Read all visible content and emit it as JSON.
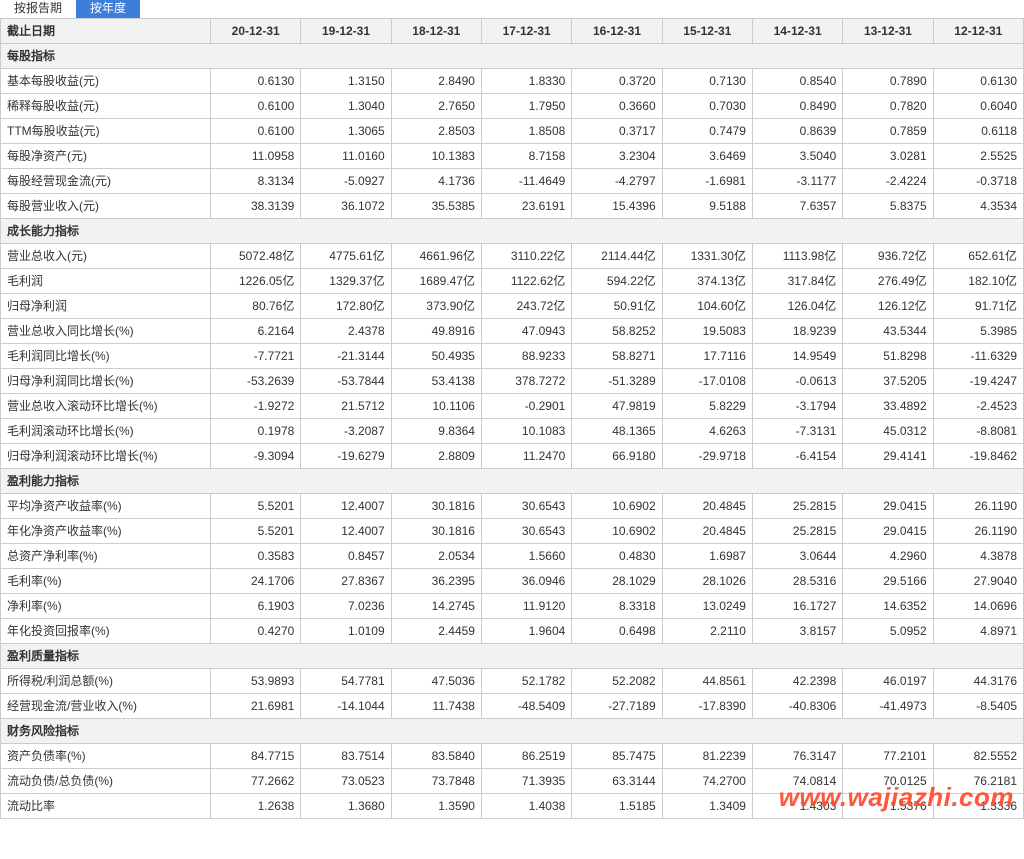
{
  "tabs": {
    "left": "按报告期",
    "active": "按年度"
  },
  "header_label": "截止日期",
  "dates": [
    "20-12-31",
    "19-12-31",
    "18-12-31",
    "17-12-31",
    "16-12-31",
    "15-12-31",
    "14-12-31",
    "13-12-31",
    "12-12-31"
  ],
  "sections": [
    {
      "title": "每股指标",
      "rows": [
        {
          "label": "基本每股收益(元)",
          "vals": [
            "0.6130",
            "1.3150",
            "2.8490",
            "1.8330",
            "0.3720",
            "0.7130",
            "0.8540",
            "0.7890",
            "0.6130"
          ]
        },
        {
          "label": "稀释每股收益(元)",
          "vals": [
            "0.6100",
            "1.3040",
            "2.7650",
            "1.7950",
            "0.3660",
            "0.7030",
            "0.8490",
            "0.7820",
            "0.6040"
          ]
        },
        {
          "label": "TTM每股收益(元)",
          "vals": [
            "0.6100",
            "1.3065",
            "2.8503",
            "1.8508",
            "0.3717",
            "0.7479",
            "0.8639",
            "0.7859",
            "0.6118"
          ]
        },
        {
          "label": "每股净资产(元)",
          "vals": [
            "11.0958",
            "11.0160",
            "10.1383",
            "8.7158",
            "3.2304",
            "3.6469",
            "3.5040",
            "3.0281",
            "2.5525"
          ]
        },
        {
          "label": "每股经营现金流(元)",
          "vals": [
            "8.3134",
            "-5.0927",
            "4.1736",
            "-11.4649",
            "-4.2797",
            "-1.6981",
            "-3.1177",
            "-2.4224",
            "-0.3718"
          ]
        },
        {
          "label": "每股营业收入(元)",
          "vals": [
            "38.3139",
            "36.1072",
            "35.5385",
            "23.6191",
            "15.4396",
            "9.5188",
            "7.6357",
            "5.8375",
            "4.3534"
          ]
        }
      ]
    },
    {
      "title": "成长能力指标",
      "rows": [
        {
          "label": "营业总收入(元)",
          "vals": [
            "5072.48亿",
            "4775.61亿",
            "4661.96亿",
            "3110.22亿",
            "2114.44亿",
            "1331.30亿",
            "1113.98亿",
            "936.72亿",
            "652.61亿"
          ]
        },
        {
          "label": "毛利润",
          "vals": [
            "1226.05亿",
            "1329.37亿",
            "1689.47亿",
            "1122.62亿",
            "594.22亿",
            "374.13亿",
            "317.84亿",
            "276.49亿",
            "182.10亿"
          ]
        },
        {
          "label": "归母净利润",
          "vals": [
            "80.76亿",
            "172.80亿",
            "373.90亿",
            "243.72亿",
            "50.91亿",
            "104.60亿",
            "126.04亿",
            "126.12亿",
            "91.71亿"
          ]
        },
        {
          "label": "营业总收入同比增长(%)",
          "vals": [
            "6.2164",
            "2.4378",
            "49.8916",
            "47.0943",
            "58.8252",
            "19.5083",
            "18.9239",
            "43.5344",
            "5.3985"
          ]
        },
        {
          "label": "毛利润同比增长(%)",
          "vals": [
            "-7.7721",
            "-21.3144",
            "50.4935",
            "88.9233",
            "58.8271",
            "17.7116",
            "14.9549",
            "51.8298",
            "-11.6329"
          ]
        },
        {
          "label": "归母净利润同比增长(%)",
          "vals": [
            "-53.2639",
            "-53.7844",
            "53.4138",
            "378.7272",
            "-51.3289",
            "-17.0108",
            "-0.0613",
            "37.5205",
            "-19.4247"
          ]
        },
        {
          "label": "营业总收入滚动环比增长(%)",
          "vals": [
            "-1.9272",
            "21.5712",
            "10.1106",
            "-0.2901",
            "47.9819",
            "5.8229",
            "-3.1794",
            "33.4892",
            "-2.4523"
          ]
        },
        {
          "label": "毛利润滚动环比增长(%)",
          "vals": [
            "0.1978",
            "-3.2087",
            "9.8364",
            "10.1083",
            "48.1365",
            "4.6263",
            "-7.3131",
            "45.0312",
            "-8.8081"
          ]
        },
        {
          "label": "归母净利润滚动环比增长(%)",
          "vals": [
            "-9.3094",
            "-19.6279",
            "2.8809",
            "11.2470",
            "66.9180",
            "-29.9718",
            "-6.4154",
            "29.4141",
            "-19.8462"
          ]
        }
      ]
    },
    {
      "title": "盈利能力指标",
      "rows": [
        {
          "label": "平均净资产收益率(%)",
          "vals": [
            "5.5201",
            "12.4007",
            "30.1816",
            "30.6543",
            "10.6902",
            "20.4845",
            "25.2815",
            "29.0415",
            "26.1190"
          ]
        },
        {
          "label": "年化净资产收益率(%)",
          "vals": [
            "5.5201",
            "12.4007",
            "30.1816",
            "30.6543",
            "10.6902",
            "20.4845",
            "25.2815",
            "29.0415",
            "26.1190"
          ]
        },
        {
          "label": "总资产净利率(%)",
          "vals": [
            "0.3583",
            "0.8457",
            "2.0534",
            "1.5660",
            "0.4830",
            "1.6987",
            "3.0644",
            "4.2960",
            "4.3878"
          ]
        },
        {
          "label": "毛利率(%)",
          "vals": [
            "24.1706",
            "27.8367",
            "36.2395",
            "36.0946",
            "28.1029",
            "28.1026",
            "28.5316",
            "29.5166",
            "27.9040"
          ]
        },
        {
          "label": "净利率(%)",
          "vals": [
            "6.1903",
            "7.0236",
            "14.2745",
            "11.9120",
            "8.3318",
            "13.0249",
            "16.1727",
            "14.6352",
            "14.0696"
          ]
        },
        {
          "label": "年化投资回报率(%)",
          "vals": [
            "0.4270",
            "1.0109",
            "2.4459",
            "1.9604",
            "0.6498",
            "2.2110",
            "3.8157",
            "5.0952",
            "4.8971"
          ]
        }
      ]
    },
    {
      "title": "盈利质量指标",
      "rows": [
        {
          "label": "所得税/利润总额(%)",
          "vals": [
            "53.9893",
            "54.7781",
            "47.5036",
            "52.1782",
            "52.2082",
            "44.8561",
            "42.2398",
            "46.0197",
            "44.3176"
          ]
        },
        {
          "label": "经营现金流/营业收入(%)",
          "vals": [
            "21.6981",
            "-14.1044",
            "11.7438",
            "-48.5409",
            "-27.7189",
            "-17.8390",
            "-40.8306",
            "-41.4973",
            "-8.5405"
          ]
        }
      ]
    },
    {
      "title": "财务风险指标",
      "rows": [
        {
          "label": "资产负债率(%)",
          "vals": [
            "84.7715",
            "83.7514",
            "83.5840",
            "86.2519",
            "85.7475",
            "81.2239",
            "76.3147",
            "77.2101",
            "82.5552"
          ]
        },
        {
          "label": "流动负债/总负债(%)",
          "vals": [
            "77.2662",
            "73.0523",
            "73.7848",
            "71.3935",
            "63.3144",
            "74.2700",
            "74.0814",
            "70.0125",
            "76.2181"
          ]
        },
        {
          "label": "流动比率",
          "vals": [
            "1.2638",
            "1.3680",
            "1.3590",
            "1.4038",
            "1.5185",
            "1.3409",
            "1.4303",
            "1.5376",
            "1.3336"
          ]
        }
      ]
    }
  ],
  "watermark": "www.wajiazhi.com",
  "colors": {
    "tab_active_bg": "#3d7edb",
    "border": "#cccccc",
    "section_bg": "#f2f2f2",
    "watermark": "#ff4a2e"
  }
}
